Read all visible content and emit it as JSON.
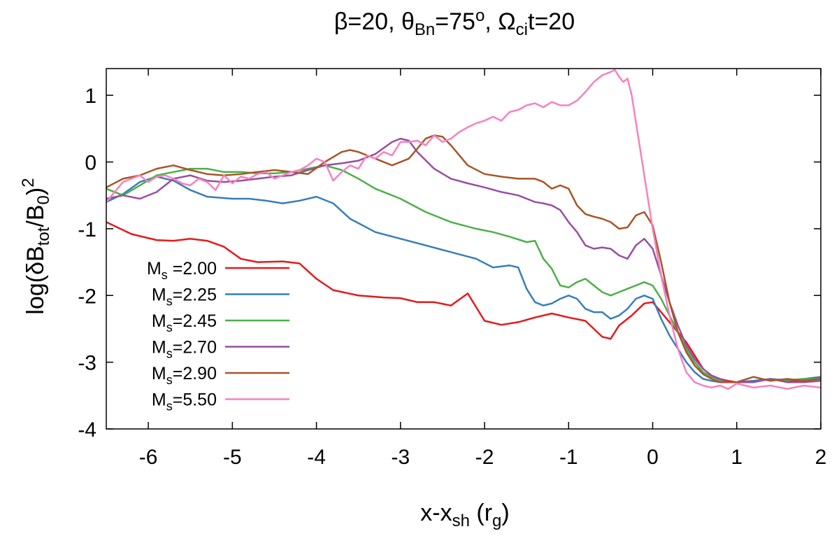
{
  "chart_data": {
    "type": "line",
    "title": {
      "beta_sym": "β",
      "beta_val": "=20,  ",
      "theta_sym": "θ",
      "theta_sub": "Bn",
      "theta_val": "=75",
      "theta_sup": "o",
      "theta_end": ", ",
      "omega_sym": "Ω",
      "omega_sub": "ci",
      "omega_val": "t=20"
    },
    "xlabel": {
      "main": "x-x",
      "sub": "sh",
      "unit_open": " (r",
      "unit_sub": "g",
      "unit_close": ")"
    },
    "ylabel": {
      "pre": "log(δB",
      "sub1": "tot",
      "mid": "/B",
      "sub2": "0",
      "close": ")",
      "sup": "2"
    },
    "xlim": [
      -6.5,
      2
    ],
    "ylim": [
      -4,
      1.4
    ],
    "xticks": [
      -6,
      -5,
      -4,
      -3,
      -2,
      -1,
      0,
      1,
      2
    ],
    "yticks": [
      -4,
      -3,
      -2,
      -1,
      0,
      1
    ],
    "grid": false,
    "legend_position": "left",
    "series": [
      {
        "name_main": "M",
        "name_sub": "s",
        "name_val": " =2.00",
        "color": "#e41a1c",
        "x": [
          -6.5,
          -6.2,
          -5.9,
          -5.7,
          -5.5,
          -5.3,
          -5.1,
          -4.9,
          -4.7,
          -4.4,
          -4.2,
          -4.0,
          -3.8,
          -3.5,
          -3.2,
          -3.0,
          -2.8,
          -2.6,
          -2.4,
          -2.2,
          -2.0,
          -1.8,
          -1.6,
          -1.4,
          -1.2,
          -1.0,
          -0.8,
          -0.6,
          -0.5,
          -0.4,
          -0.25,
          -0.1,
          0.0,
          0.1,
          0.2,
          0.3,
          0.4,
          0.5,
          0.6,
          0.7,
          0.8,
          0.9,
          1.0,
          1.2,
          1.4,
          1.6,
          1.8,
          2.0
        ],
        "y": [
          -0.9,
          -1.08,
          -1.17,
          -1.18,
          -1.15,
          -1.18,
          -1.27,
          -1.45,
          -1.5,
          -1.49,
          -1.52,
          -1.75,
          -1.92,
          -2.0,
          -2.03,
          -2.04,
          -2.1,
          -2.1,
          -2.15,
          -1.97,
          -2.38,
          -2.44,
          -2.4,
          -2.33,
          -2.27,
          -2.33,
          -2.38,
          -2.62,
          -2.65,
          -2.45,
          -2.3,
          -2.12,
          -2.1,
          -2.25,
          -2.4,
          -2.55,
          -2.7,
          -2.9,
          -3.1,
          -3.2,
          -3.25,
          -3.28,
          -3.3,
          -3.28,
          -3.26,
          -3.28,
          -3.27,
          -3.25
        ]
      },
      {
        "name_main": "M",
        "name_sub": "s",
        "name_val": "=2.25",
        "color": "#377eb8",
        "x": [
          -6.5,
          -6.3,
          -6.1,
          -5.9,
          -5.7,
          -5.5,
          -5.3,
          -5.0,
          -4.8,
          -4.6,
          -4.4,
          -4.2,
          -4.0,
          -3.8,
          -3.6,
          -3.3,
          -3.0,
          -2.7,
          -2.4,
          -2.1,
          -1.9,
          -1.7,
          -1.6,
          -1.5,
          -1.4,
          -1.3,
          -1.2,
          -1.1,
          -1.0,
          -0.9,
          -0.8,
          -0.7,
          -0.6,
          -0.5,
          -0.4,
          -0.3,
          -0.2,
          -0.1,
          0.0,
          0.1,
          0.2,
          0.3,
          0.4,
          0.5,
          0.6,
          0.7,
          0.8,
          0.9,
          1.0,
          1.2,
          1.4,
          1.6,
          1.8,
          2.0
        ],
        "y": [
          -0.6,
          -0.48,
          -0.3,
          -0.22,
          -0.28,
          -0.42,
          -0.52,
          -0.55,
          -0.55,
          -0.58,
          -0.62,
          -0.58,
          -0.52,
          -0.62,
          -0.85,
          -1.05,
          -1.15,
          -1.25,
          -1.35,
          -1.45,
          -1.58,
          -1.55,
          -1.58,
          -1.9,
          -2.1,
          -2.15,
          -2.12,
          -2.05,
          -2.0,
          -2.05,
          -2.2,
          -2.25,
          -2.25,
          -2.35,
          -2.3,
          -2.2,
          -2.05,
          -2.0,
          -2.05,
          -2.35,
          -2.6,
          -2.8,
          -3.0,
          -3.15,
          -3.25,
          -3.28,
          -3.3,
          -3.3,
          -3.3,
          -3.28,
          -3.25,
          -3.27,
          -3.25,
          -3.22
        ]
      },
      {
        "name_main": "M",
        "name_sub": "s",
        "name_val": "=2.45",
        "color": "#4daf4a",
        "x": [
          -6.5,
          -6.3,
          -6.1,
          -5.9,
          -5.7,
          -5.5,
          -5.3,
          -5.1,
          -4.9,
          -4.7,
          -4.5,
          -4.3,
          -4.1,
          -3.9,
          -3.7,
          -3.5,
          -3.3,
          -3.0,
          -2.7,
          -2.4,
          -2.1,
          -1.9,
          -1.7,
          -1.5,
          -1.4,
          -1.3,
          -1.2,
          -1.1,
          -1.0,
          -0.9,
          -0.8,
          -0.7,
          -0.6,
          -0.5,
          -0.4,
          -0.3,
          -0.2,
          -0.1,
          0.0,
          0.1,
          0.2,
          0.3,
          0.4,
          0.5,
          0.6,
          0.7,
          0.8,
          0.9,
          1.0,
          1.2,
          1.4,
          1.6,
          1.8,
          2.0
        ],
        "y": [
          -0.4,
          -0.5,
          -0.35,
          -0.2,
          -0.15,
          -0.1,
          -0.1,
          -0.15,
          -0.15,
          -0.17,
          -0.17,
          -0.15,
          -0.1,
          -0.05,
          -0.12,
          -0.25,
          -0.4,
          -0.55,
          -0.75,
          -0.9,
          -1.0,
          -1.05,
          -1.12,
          -1.2,
          -1.18,
          -1.45,
          -1.6,
          -1.85,
          -1.88,
          -1.8,
          -1.75,
          -1.85,
          -1.95,
          -2.0,
          -1.95,
          -1.9,
          -1.85,
          -1.8,
          -1.85,
          -2.05,
          -2.3,
          -2.55,
          -2.8,
          -3.0,
          -3.15,
          -3.22,
          -3.27,
          -3.3,
          -3.3,
          -3.3,
          -3.25,
          -3.27,
          -3.25,
          -3.25
        ]
      },
      {
        "name_main": "M",
        "name_sub": "s",
        "name_val": "=2.70",
        "color": "#984ea3",
        "x": [
          -6.5,
          -6.3,
          -6.1,
          -5.9,
          -5.7,
          -5.5,
          -5.3,
          -5.1,
          -4.9,
          -4.7,
          -4.5,
          -4.3,
          -4.1,
          -3.9,
          -3.7,
          -3.5,
          -3.3,
          -3.1,
          -3.0,
          -2.9,
          -2.8,
          -2.6,
          -2.4,
          -2.2,
          -2.0,
          -1.8,
          -1.6,
          -1.4,
          -1.3,
          -1.2,
          -1.1,
          -1.0,
          -0.9,
          -0.8,
          -0.7,
          -0.6,
          -0.5,
          -0.4,
          -0.3,
          -0.2,
          -0.1,
          0.0,
          0.1,
          0.2,
          0.3,
          0.4,
          0.5,
          0.6,
          0.7,
          0.8,
          0.9,
          1.0,
          1.2,
          1.4,
          1.6,
          1.8,
          2.0
        ],
        "y": [
          -0.55,
          -0.5,
          -0.55,
          -0.45,
          -0.25,
          -0.2,
          -0.28,
          -0.3,
          -0.28,
          -0.25,
          -0.22,
          -0.2,
          -0.12,
          -0.05,
          -0.02,
          0.02,
          0.12,
          0.3,
          0.35,
          0.32,
          0.15,
          -0.1,
          -0.25,
          -0.32,
          -0.38,
          -0.45,
          -0.5,
          -0.6,
          -0.62,
          -0.65,
          -0.72,
          -0.9,
          -1.05,
          -1.25,
          -1.3,
          -1.28,
          -1.3,
          -1.4,
          -1.45,
          -1.25,
          -1.15,
          -1.3,
          -1.7,
          -2.1,
          -2.45,
          -2.75,
          -2.95,
          -3.1,
          -3.2,
          -3.25,
          -3.3,
          -3.3,
          -3.3,
          -3.25,
          -3.3,
          -3.3,
          -3.28
        ]
      },
      {
        "name_main": "M",
        "name_sub": "s",
        "name_val": "=2.90",
        "color": "#a65628",
        "x": [
          -6.5,
          -6.3,
          -6.1,
          -5.9,
          -5.7,
          -5.5,
          -5.3,
          -5.1,
          -4.9,
          -4.7,
          -4.5,
          -4.3,
          -4.1,
          -3.9,
          -3.7,
          -3.6,
          -3.5,
          -3.3,
          -3.1,
          -2.9,
          -2.7,
          -2.6,
          -2.5,
          -2.4,
          -2.2,
          -2.0,
          -1.8,
          -1.6,
          -1.4,
          -1.3,
          -1.2,
          -1.1,
          -1.0,
          -0.9,
          -0.8,
          -0.7,
          -0.6,
          -0.5,
          -0.4,
          -0.3,
          -0.2,
          -0.1,
          0.0,
          0.1,
          0.2,
          0.3,
          0.4,
          0.5,
          0.6,
          0.7,
          0.8,
          0.9,
          1.0,
          1.2,
          1.4,
          1.6,
          1.8,
          2.0
        ],
        "y": [
          -0.38,
          -0.25,
          -0.2,
          -0.1,
          -0.05,
          -0.12,
          -0.18,
          -0.2,
          -0.18,
          -0.15,
          -0.12,
          -0.15,
          -0.18,
          0.0,
          0.15,
          0.18,
          0.15,
          0.05,
          -0.05,
          0.05,
          0.35,
          0.4,
          0.38,
          0.25,
          -0.05,
          -0.18,
          -0.22,
          -0.25,
          -0.25,
          -0.3,
          -0.4,
          -0.35,
          -0.4,
          -0.65,
          -0.78,
          -0.82,
          -0.85,
          -0.9,
          -1.0,
          -0.98,
          -0.8,
          -0.75,
          -0.95,
          -1.5,
          -2.1,
          -2.55,
          -2.85,
          -3.05,
          -3.18,
          -3.25,
          -3.3,
          -3.3,
          -3.3,
          -3.22,
          -3.28,
          -3.25,
          -3.28,
          -3.25
        ]
      },
      {
        "name_main": "M",
        "name_sub": "s",
        "name_val": "=5.50",
        "color": "#f781bf",
        "x": [
          -6.5,
          -6.3,
          -6.1,
          -6.0,
          -5.9,
          -5.8,
          -5.7,
          -5.6,
          -5.5,
          -5.4,
          -5.3,
          -5.2,
          -5.1,
          -5.0,
          -4.9,
          -4.8,
          -4.7,
          -4.6,
          -4.5,
          -4.4,
          -4.3,
          -4.2,
          -4.1,
          -4.0,
          -3.9,
          -3.8,
          -3.7,
          -3.6,
          -3.5,
          -3.4,
          -3.3,
          -3.2,
          -3.1,
          -3.0,
          -2.9,
          -2.8,
          -2.7,
          -2.6,
          -2.5,
          -2.4,
          -2.3,
          -2.2,
          -2.1,
          -2.0,
          -1.9,
          -1.8,
          -1.7,
          -1.6,
          -1.5,
          -1.4,
          -1.3,
          -1.2,
          -1.1,
          -1.0,
          -0.9,
          -0.8,
          -0.7,
          -0.6,
          -0.5,
          -0.45,
          -0.4,
          -0.35,
          -0.3,
          -0.25,
          -0.2,
          -0.15,
          -0.1,
          -0.05,
          0.0,
          0.1,
          0.2,
          0.3,
          0.4,
          0.5,
          0.6,
          0.7,
          0.8,
          0.9,
          1.0,
          1.2,
          1.4,
          1.6,
          1.8,
          2.0
        ],
        "y": [
          -0.6,
          -0.3,
          -0.2,
          -0.3,
          -0.22,
          -0.2,
          -0.25,
          -0.32,
          -0.35,
          -0.25,
          -0.3,
          -0.42,
          -0.2,
          -0.32,
          -0.22,
          -0.25,
          -0.18,
          -0.15,
          -0.25,
          -0.2,
          -0.15,
          -0.12,
          -0.05,
          0.05,
          0.0,
          -0.28,
          -0.15,
          -0.05,
          -0.1,
          0.1,
          0.05,
          0.15,
          0.1,
          0.3,
          0.3,
          0.32,
          0.25,
          0.4,
          0.3,
          0.35,
          0.45,
          0.52,
          0.58,
          0.62,
          0.68,
          0.62,
          0.75,
          0.78,
          0.85,
          0.88,
          0.82,
          0.9,
          0.85,
          0.85,
          0.92,
          1.05,
          1.2,
          1.3,
          1.35,
          1.38,
          1.28,
          1.2,
          1.25,
          1.0,
          0.6,
          0.2,
          -0.2,
          -0.6,
          -1.0,
          -1.7,
          -2.3,
          -2.8,
          -3.15,
          -3.3,
          -3.35,
          -3.38,
          -3.35,
          -3.4,
          -3.32,
          -3.38,
          -3.35,
          -3.4,
          -3.35,
          -3.38
        ]
      }
    ]
  }
}
